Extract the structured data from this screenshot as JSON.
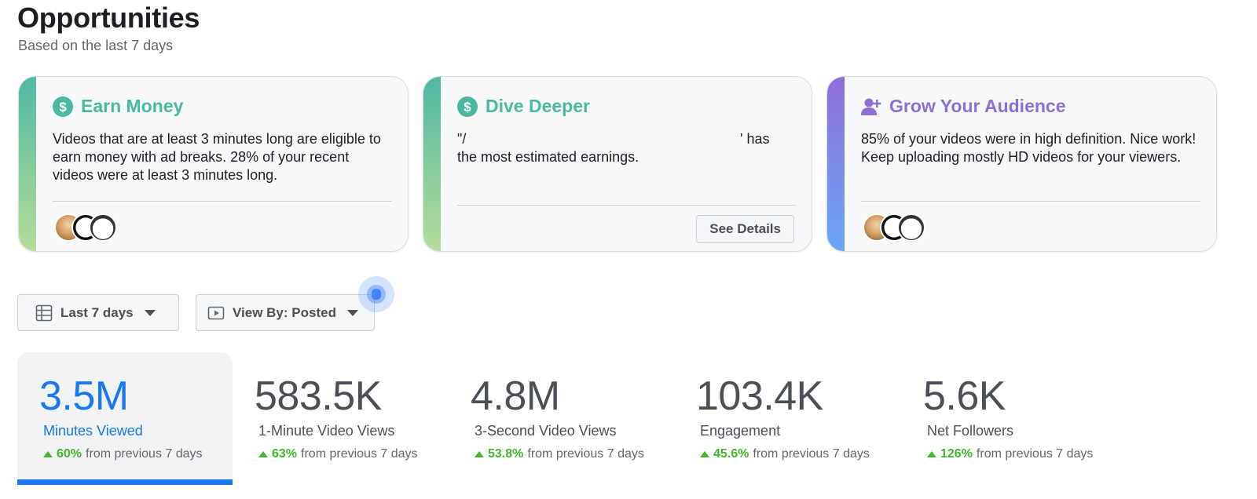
{
  "header": {
    "title": "Opportunities",
    "subtitle": "Based on the last 7 days"
  },
  "cards": [
    {
      "title": "Earn Money",
      "icon": "dollar-icon",
      "color": "#4bb8a0",
      "body": "Videos that are at least 3 minutes long are eligible to earn money with ad breaks. 28% of your recent videos were at least 3 minutes long."
    },
    {
      "title": "Dive Deeper",
      "icon": "dollar-icon",
      "color": "#4bb8a0",
      "body_prefix": "\"/",
      "body_suffix": "' has",
      "body_line2": "the most estimated earnings.",
      "button": "See Details"
    },
    {
      "title": "Grow Your Audience",
      "icon": "add-person-icon",
      "color": "#8e6fd6",
      "body": "85% of your videos were in high definition. Nice work! Keep uploading mostly HD videos for your viewers."
    }
  ],
  "filters": {
    "date_range": "Last 7 days",
    "view_by": "View By: Posted"
  },
  "metrics": [
    {
      "value": "3.5M",
      "label": "Minutes Viewed",
      "change": "60%",
      "suffix": "from previous 7 days",
      "active": true
    },
    {
      "value": "583.5K",
      "label": "1-Minute Video Views",
      "change": "63%",
      "suffix": "from previous 7 days"
    },
    {
      "value": "4.8M",
      "label": "3-Second Video Views",
      "change": "53.8%",
      "suffix": "from previous 7 days"
    },
    {
      "value": "103.4K",
      "label": "Engagement",
      "change": "45.6%",
      "suffix": "from previous 7 days"
    },
    {
      "value": "5.6K",
      "label": "Net Followers",
      "change": "126%",
      "suffix": "from previous 7 days"
    }
  ],
  "colors": {
    "accent": "#1877f2",
    "positive": "#42b72a",
    "teal": "#4bb8a0",
    "purple": "#8e6fd6"
  }
}
